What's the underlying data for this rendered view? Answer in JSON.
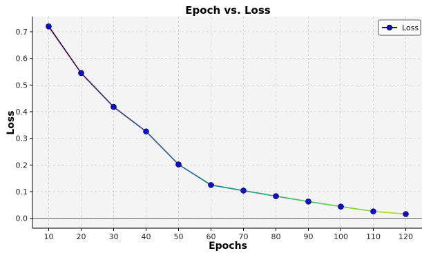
{
  "chart_data": {
    "type": "line",
    "title": "Epoch vs. Loss",
    "xlabel": "Epochs",
    "ylabel": "Loss",
    "x": [
      10,
      20,
      30,
      40,
      50,
      60,
      70,
      80,
      90,
      100,
      110,
      120
    ],
    "series": [
      {
        "name": "Loss",
        "values": [
          0.72,
          0.545,
          0.418,
          0.326,
          0.202,
          0.125,
          0.104,
          0.083,
          0.063,
          0.044,
          0.026,
          0.016
        ]
      }
    ],
    "xlim": [
      5,
      125
    ],
    "ylim": [
      -0.037,
      0.757
    ],
    "xticks": [
      "10",
      "20",
      "30",
      "40",
      "50",
      "60",
      "70",
      "80",
      "90",
      "100",
      "110",
      "120"
    ],
    "yticks": [
      "0.0",
      "0.1",
      "0.2",
      "0.3",
      "0.4",
      "0.5",
      "0.6",
      "0.7"
    ],
    "grid": true,
    "legend_position": "top-right",
    "colors": {
      "plot_background": "#f4f4f4",
      "grid": "#c8c8c8",
      "marker_fill": "#1010c8",
      "marker_edge": "#000080",
      "line_start": "#440154",
      "line_end": "#bddf26",
      "legend_line": "#1010c8",
      "zero_line": "#000000"
    }
  }
}
